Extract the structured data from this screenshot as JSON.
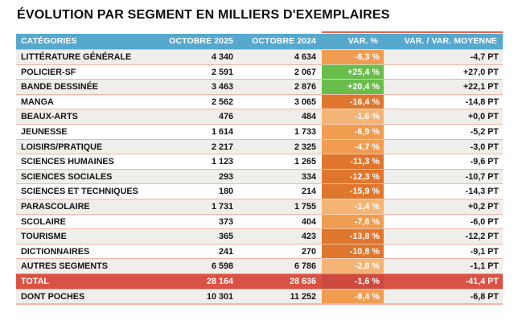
{
  "title": "ÉVOLUTION PAR SEGMENT EN MILLIERS D'EXEMPLAIRES",
  "table": {
    "headers": [
      "CATÉGORIES",
      "OCTOBRE 2025",
      "OCTOBRE 2024",
      "VAR. %",
      "VAR. / VAR. MOYENNE"
    ]
  },
  "colors": {
    "header_blue": "#57A8CD",
    "row_alt": "#F0EEEA",
    "divider": "#F3B4A3",
    "var_light": "#F4B476",
    "var_medium": "#F09D52",
    "var_dark": "#E0762E",
    "var_green": "#69BD4B",
    "total_row_red": "#DA5243",
    "total_var_red": "#CE4A3E",
    "accent_line": "#E2654E"
  },
  "chart_data": {
    "type": "table",
    "title": "ÉVOLUTION PAR SEGMENT EN MILLIERS D'EXEMPLAIRES",
    "columns": [
      "CATÉGORIES",
      "OCTOBRE 2025",
      "OCTOBRE 2024",
      "VAR. %",
      "VAR. / VAR. MOYENNE"
    ],
    "rows": [
      {
        "category": "LITTÉRATURE GÉNÉRALE",
        "octobre_2025": "4 340",
        "octobre_2024": "4 634",
        "var_pct": "-6,3 %",
        "var_level": "medium",
        "var_moyenne": "-4,7 PT"
      },
      {
        "category": "POLICIER-SF",
        "octobre_2025": "2 591",
        "octobre_2024": "2 067",
        "var_pct": "+25,4 %",
        "var_level": "green",
        "var_moyenne": "+27,0 PT"
      },
      {
        "category": "BANDE DESSINÉE",
        "octobre_2025": "3 463",
        "octobre_2024": "2 876",
        "var_pct": "+20,4 %",
        "var_level": "green",
        "var_moyenne": "+22,1 PT"
      },
      {
        "category": "MANGA",
        "octobre_2025": "2 562",
        "octobre_2024": "3 065",
        "var_pct": "-16,4 %",
        "var_level": "dark",
        "var_moyenne": "-14,8 PT"
      },
      {
        "category": "BEAUX-ARTS",
        "octobre_2025": "476",
        "octobre_2024": "484",
        "var_pct": "-1,6 %",
        "var_level": "light",
        "var_moyenne": "+0,0 PT"
      },
      {
        "category": "JEUNESSE",
        "octobre_2025": "1 614",
        "octobre_2024": "1 733",
        "var_pct": "-6,9 %",
        "var_level": "medium",
        "var_moyenne": "-5,2 PT"
      },
      {
        "category": "LOISIRS/PRATIQUE",
        "octobre_2025": "2 217",
        "octobre_2024": "2 325",
        "var_pct": "-4,7 %",
        "var_level": "medium",
        "var_moyenne": "-3,0 PT"
      },
      {
        "category": "SCIENCES HUMAINES",
        "octobre_2025": "1 123",
        "octobre_2024": "1 265",
        "var_pct": "-11,3 %",
        "var_level": "dark",
        "var_moyenne": "-9,6 PT"
      },
      {
        "category": "SCIENCES SOCIALES",
        "octobre_2025": "293",
        "octobre_2024": "334",
        "var_pct": "-12,3 %",
        "var_level": "dark",
        "var_moyenne": "-10,7 PT"
      },
      {
        "category": "SCIENCES ET TECHNIQUES",
        "octobre_2025": "180",
        "octobre_2024": "214",
        "var_pct": "-15,9 %",
        "var_level": "dark",
        "var_moyenne": "-14,3 PT"
      },
      {
        "category": "PARASCOLAIRE",
        "octobre_2025": "1 731",
        "octobre_2024": "1 755",
        "var_pct": "-1,4 %",
        "var_level": "light",
        "var_moyenne": "+0,2 PT"
      },
      {
        "category": "SCOLAIRE",
        "octobre_2025": "373",
        "octobre_2024": "404",
        "var_pct": "-7,6 %",
        "var_level": "medium",
        "var_moyenne": "-6,0 PT"
      },
      {
        "category": "TOURISME",
        "octobre_2025": "365",
        "octobre_2024": "423",
        "var_pct": "-13,8 %",
        "var_level": "dark",
        "var_moyenne": "-12,2 PT"
      },
      {
        "category": "DICTIONNAIRES",
        "octobre_2025": "241",
        "octobre_2024": "270",
        "var_pct": "-10,8 %",
        "var_level": "dark",
        "var_moyenne": "-9,1 PT"
      },
      {
        "category": "AUTRES SEGMENTS",
        "octobre_2025": "6 598",
        "octobre_2024": "6 786",
        "var_pct": "-2,8 %",
        "var_level": "light",
        "var_moyenne": "-1,1 PT"
      },
      {
        "category": "TOTAL",
        "octobre_2025": "28 164",
        "octobre_2024": "28 636",
        "var_pct": "-1,6 %",
        "var_level": "total",
        "var_moyenne": "-41,4 PT"
      },
      {
        "category": "DONT POCHES",
        "octobre_2025": "10 301",
        "octobre_2024": "11 252",
        "var_pct": "-8,4 %",
        "var_level": "medium",
        "var_moyenne": "-6,8 PT"
      }
    ]
  }
}
